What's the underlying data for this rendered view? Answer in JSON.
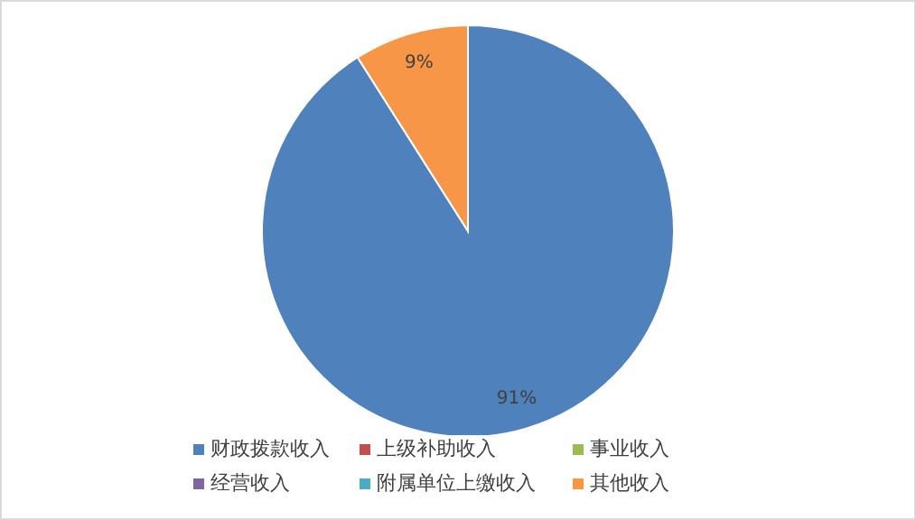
{
  "chart_data": {
    "type": "pie",
    "categories": [
      "财政拨款收入",
      "上级补助收入",
      "事业收入",
      "经营收入",
      "附属单位上缴收入",
      "其他收入"
    ],
    "values": [
      91,
      0,
      0,
      0,
      0,
      9
    ],
    "colors": [
      "#4f81bd",
      "#c0504d",
      "#9bbb59",
      "#8064a2",
      "#4bacc6",
      "#f79646"
    ],
    "value_labels": [
      "91%",
      null,
      null,
      null,
      null,
      "9%"
    ],
    "legend": "bottom"
  }
}
